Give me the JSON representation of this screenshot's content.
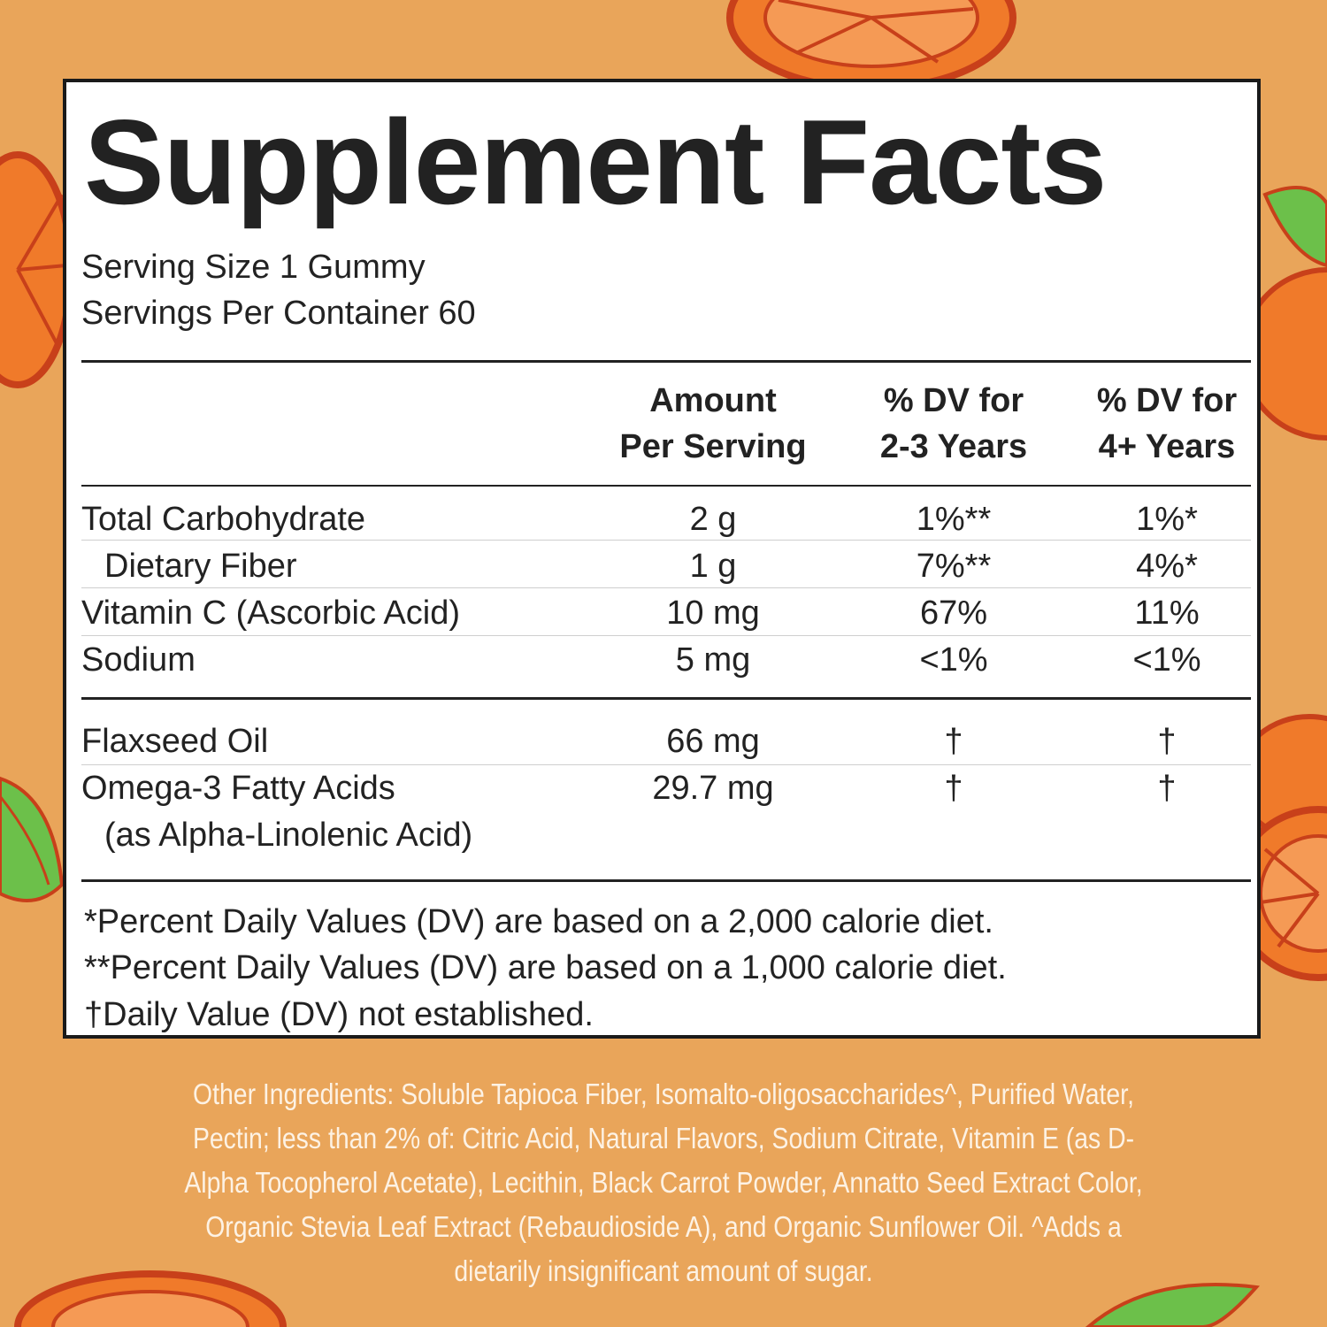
{
  "title": "Supplement Facts",
  "serving_size": "Serving Size 1 Gummy",
  "servings_per_container": "Servings Per Container 60",
  "columns": {
    "amount": [
      "Amount",
      "Per Serving"
    ],
    "dv_young": [
      "% DV for",
      "2-3 Years"
    ],
    "dv_old": [
      "% DV for",
      "4+ Years"
    ]
  },
  "nutrients": [
    {
      "name": "Total Carbohydrate",
      "amount": "2 g",
      "dv_young": "1%**",
      "dv_old": "1%*"
    },
    {
      "name": "Dietary Fiber",
      "amount": "1 g",
      "dv_young": "7%**",
      "dv_old": "4%*"
    },
    {
      "name": "Vitamin C (Ascorbic Acid)",
      "amount": "10 mg",
      "dv_young": "67%",
      "dv_old": "11%"
    },
    {
      "name": "Sodium",
      "amount": "5 mg",
      "dv_young": "<1%",
      "dv_old": "<1%"
    }
  ],
  "other_nutrients": [
    {
      "name": "Flaxseed Oil",
      "amount": "66 mg",
      "dv_young": "†",
      "dv_old": "†"
    },
    {
      "name": "Omega-3 Fatty Acids",
      "sub": "(as Alpha-Linolenic Acid)",
      "amount": "29.7 mg",
      "dv_young": "†",
      "dv_old": "†"
    }
  ],
  "footnotes": [
    "*Percent Daily Values (DV) are based on a 2,000 calorie diet.",
    "**Percent Daily Values (DV) are based on a 1,000 calorie diet.",
    "†Daily Value (DV) not established."
  ],
  "other_ingredients": "Other Ingredients: Soluble Tapioca Fiber, Isomalto-oligosaccharides^, Purified Water, Pectin; less than 2% of: Citric Acid, Natural Flavors, Sodium Citrate, Vitamin E (as D-Alpha Tocopherol Acetate), Lecithin, Black Carrot Powder, Annatto Seed Extract Color, Organic Stevia Leaf Extract (Rebaudioside A), and Organic Sunflower Oil. ^Adds a dietarily insignificant amount of sugar.",
  "colors": {
    "background": "#e9a55a",
    "orange_fruit": "#f07a2a",
    "fruit_outline": "#c8401a",
    "leaf": "#6cc04a",
    "ink": "#222222",
    "ingredients_text": "#fdf2e4"
  },
  "decorations": [
    "orange-slice-icon",
    "leaf-icon"
  ]
}
